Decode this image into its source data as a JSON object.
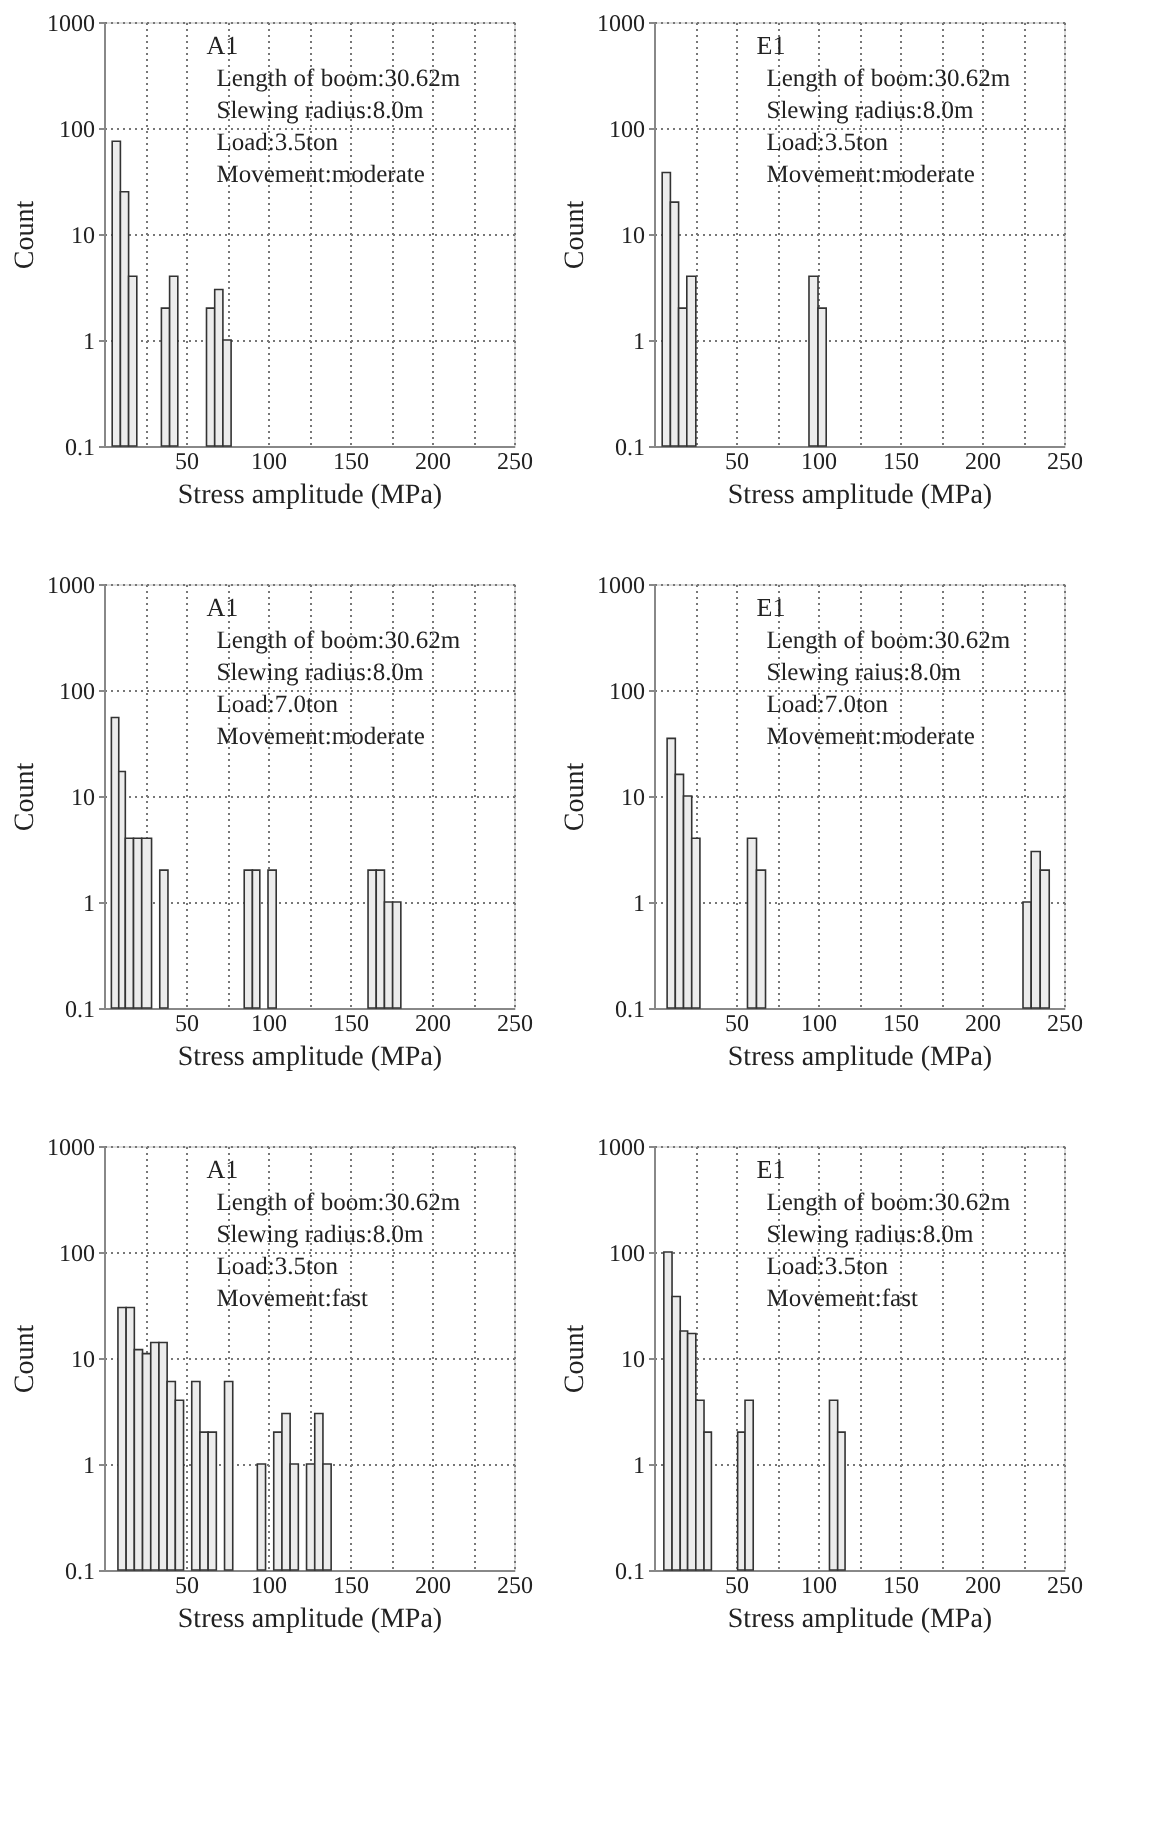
{
  "chart_data": [
    {
      "type": "histogram",
      "xlabel": "Stress amplitude (MPa)",
      "ylabel": "Count",
      "color": "#ececec",
      "log": true,
      "grid": true,
      "xlim": [
        0,
        250
      ],
      "ylim": [
        0.1,
        1000
      ],
      "yticks": [
        0.1,
        1,
        10,
        100,
        1000
      ],
      "xticks": [
        {
          "value": 25,
          "label": null
        },
        50,
        {
          "value": 75,
          "label": null
        },
        100,
        {
          "value": 125,
          "label": null
        },
        150,
        {
          "value": 175,
          "label": null
        },
        200,
        {
          "value": 225,
          "label": null
        },
        250
      ],
      "bins": [
        5,
        10,
        15,
        20,
        35,
        40,
        45,
        62.5,
        67.5,
        72.5,
        77.5
      ],
      "values": [
        75,
        25,
        4,
        null,
        2,
        4,
        null,
        2,
        3,
        1
      ],
      "annotations": [
        "A1",
        "Length of boom:30.62m",
        "Slewing radius:8.0m",
        "Load:3.5ton",
        "Movement:moderate"
      ]
    },
    {
      "type": "histogram",
      "xlabel": "Stress amplitude (MPa)",
      "ylabel": "Count",
      "color": "#ececec",
      "log": true,
      "grid": true,
      "xlim": [
        0,
        250
      ],
      "ylim": [
        0.1,
        1000
      ],
      "yticks": [
        0.1,
        1,
        10,
        100,
        1000
      ],
      "xticks": [
        {
          "value": 25,
          "label": null
        },
        50,
        {
          "value": 75,
          "label": null
        },
        100,
        {
          "value": 125,
          "label": null
        },
        150,
        {
          "value": 175,
          "label": null
        },
        200,
        {
          "value": 225,
          "label": null
        },
        250
      ],
      "bins": [
        5,
        10,
        15,
        20,
        25.5,
        94.5,
        100,
        105
      ],
      "values": [
        38,
        20,
        2,
        4,
        null,
        4,
        2
      ],
      "annotations": [
        "E1",
        "Length of boom:30.62m",
        "Slewing radius:8.0m",
        "Load:3.5ton",
        "Movement:moderate"
      ]
    },
    {
      "type": "histogram",
      "xlabel": "Stress amplitude (MPa)",
      "ylabel": "Count",
      "color": "#ececec",
      "log": true,
      "grid": true,
      "xlim": [
        0,
        250
      ],
      "ylim": [
        0.1,
        1000
      ],
      "yticks": [
        0.1,
        1,
        10,
        100,
        1000
      ],
      "xticks": [
        {
          "value": 25,
          "label": null
        },
        50,
        {
          "value": 75,
          "label": null
        },
        100,
        {
          "value": 125,
          "label": null
        },
        150,
        {
          "value": 175,
          "label": null
        },
        200,
        {
          "value": 225,
          "label": null
        },
        250
      ],
      "bins": [
        4.5,
        9,
        13,
        18,
        23,
        29,
        34,
        39,
        85.5,
        90.5,
        95,
        100,
        105,
        161,
        166,
        171,
        176,
        181
      ],
      "values": [
        55,
        17,
        4,
        4,
        4,
        null,
        2,
        null,
        2,
        2,
        null,
        2,
        null,
        2,
        2,
        1,
        1
      ],
      "annotations": [
        "A1",
        "Length of boom:30.62m",
        "Slewing radius:8.0m",
        "Load:7.0ton",
        "Movement:moderate"
      ]
    },
    {
      "type": "histogram",
      "xlabel": "Stress amplitude (MPa)",
      "ylabel": "Count",
      "color": "#ececec",
      "log": true,
      "grid": true,
      "xlim": [
        0,
        250
      ],
      "ylim": [
        0.1,
        1000
      ],
      "yticks": [
        0.1,
        1,
        10,
        100,
        1000
      ],
      "xticks": [
        {
          "value": 25,
          "label": null
        },
        50,
        {
          "value": 75,
          "label": null
        },
        100,
        {
          "value": 125,
          "label": null
        },
        150,
        {
          "value": 175,
          "label": null
        },
        200,
        {
          "value": 225,
          "label": null
        },
        250
      ],
      "bins": [
        8,
        13,
        18,
        23,
        28,
        57,
        62.5,
        68,
        225,
        230,
        235.5,
        241
      ],
      "values": [
        35,
        16,
        10,
        4,
        null,
        4,
        2,
        null,
        1,
        3,
        2
      ],
      "annotations": [
        "E1",
        "Length of boom:30.62m",
        "Slewing raius:8.0m",
        "Load:7.0ton",
        "Movement:moderate"
      ]
    },
    {
      "type": "histogram",
      "xlabel": "Stress amplitude (MPa)",
      "ylabel": "Count",
      "color": "#ececec",
      "log": true,
      "grid": true,
      "xlim": [
        0,
        250
      ],
      "ylim": [
        0.1,
        1000
      ],
      "yticks": [
        0.1,
        1,
        10,
        100,
        1000
      ],
      "xticks": [
        {
          "value": 25,
          "label": null
        },
        50,
        {
          "value": 75,
          "label": null
        },
        100,
        {
          "value": 125,
          "label": null
        },
        150,
        {
          "value": 175,
          "label": null
        },
        200,
        {
          "value": 225,
          "label": null
        },
        250
      ],
      "bins": [
        8.5,
        13.5,
        18.5,
        23.5,
        28.5,
        33.5,
        38.5,
        43.5,
        48.5,
        53.5,
        58.5,
        63.5,
        68.5,
        73.5,
        78.5,
        83.5,
        88.5,
        93.5,
        98.5,
        103.5,
        108.5,
        113.5,
        118.5,
        123.5,
        128.5,
        133.5,
        138.5
      ],
      "values": [
        30,
        30,
        12,
        11,
        14,
        14,
        6,
        4,
        null,
        6,
        2,
        2,
        null,
        6,
        null,
        null,
        null,
        1,
        null,
        2,
        3,
        1,
        null,
        1,
        3,
        1
      ],
      "annotations": [
        "A1",
        "Length of boom:30.62m",
        "Slewing radius:8.0m",
        "Load:3.5ton",
        "Movement:fast"
      ]
    },
    {
      "type": "histogram",
      "xlabel": "Stress amplitude (MPa)",
      "ylabel": "Count",
      "color": "#ececec",
      "log": true,
      "grid": true,
      "xlim": [
        0,
        250
      ],
      "ylim": [
        0.1,
        1000
      ],
      "yticks": [
        0.1,
        1,
        10,
        100,
        1000
      ],
      "xticks": [
        {
          "value": 25,
          "label": null
        },
        50,
        {
          "value": 75,
          "label": null
        },
        100,
        {
          "value": 125,
          "label": null
        },
        150,
        {
          "value": 175,
          "label": null
        },
        200,
        {
          "value": 225,
          "label": null
        },
        250
      ],
      "bins": [
        6,
        11,
        16,
        20.5,
        25.5,
        30.5,
        35,
        51,
        55.5,
        60.5,
        107,
        112,
        116.5
      ],
      "values": [
        100,
        38,
        18,
        17,
        4,
        2,
        null,
        2,
        4,
        null,
        4,
        2
      ],
      "annotations": [
        "E1",
        "Length of boom:30.62m",
        "Slewing radius:8.0m",
        "Load:3.5ton",
        "Movement:fast"
      ]
    }
  ]
}
